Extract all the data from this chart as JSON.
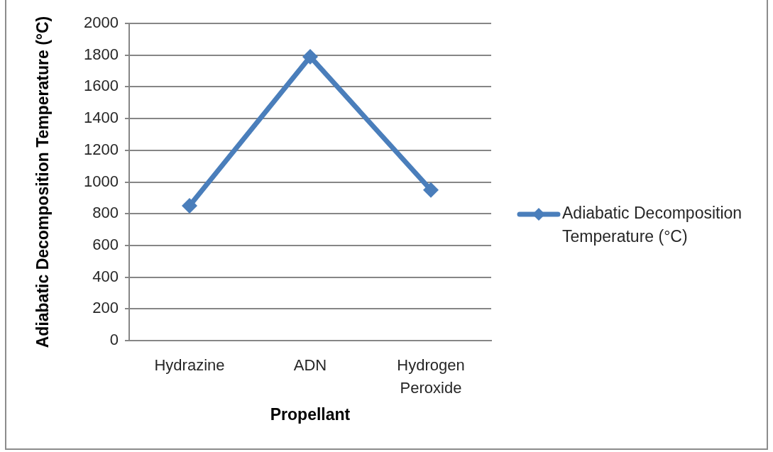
{
  "chart_data": {
    "type": "line",
    "xlabel": "Propellant",
    "ylabel": "Adiabatic Decomposition Temperature (°C)",
    "categories": [
      "Hydrazine",
      "ADN",
      "Hydrogen Peroxide"
    ],
    "series": [
      {
        "name": "Adiabatic Decomposition Temperature (°C)",
        "color": "#4a7ebb",
        "values": [
          850,
          1790,
          950
        ]
      }
    ],
    "ylim": [
      0,
      2000
    ],
    "yticks": [
      0,
      200,
      400,
      600,
      800,
      1000,
      1200,
      1400,
      1600,
      1800,
      2000
    ],
    "grid": "y",
    "legend": "right",
    "marker": "diamond",
    "line_style": "solid"
  }
}
